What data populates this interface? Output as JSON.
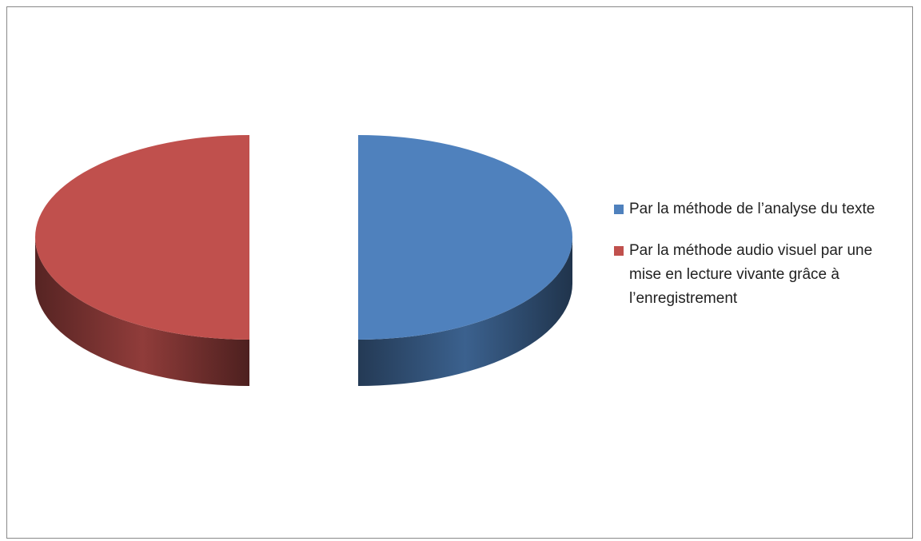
{
  "chart_data": {
    "type": "pie",
    "categories": [
      "Par la méthode de l’analyse du texte",
      "Par la méthode audio visuel par une mise en lecture vivante grâce à l’enregistrement"
    ],
    "values": [
      50,
      50
    ],
    "colors": [
      "#4f81bd",
      "#c0504d"
    ],
    "legend": "right"
  }
}
